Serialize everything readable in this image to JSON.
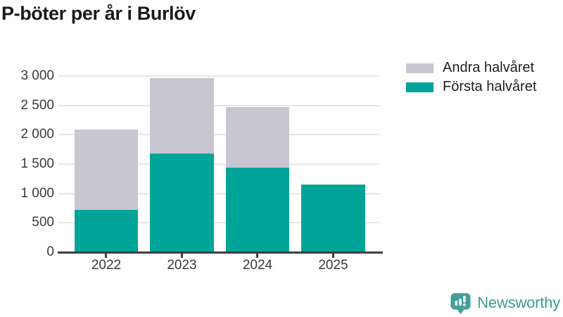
{
  "title": "P-böter per år i Burlöv",
  "legend": {
    "items": [
      {
        "label": "Andra halvåret",
        "color": "#C8C6D0"
      },
      {
        "label": "Första halvåret",
        "color": "#00A498"
      }
    ]
  },
  "chart_data": {
    "type": "bar",
    "stacked": true,
    "title": "P-böter per år i Burlöv",
    "categories": [
      "2022",
      "2023",
      "2024",
      "2025"
    ],
    "series": [
      {
        "name": "Första halvåret",
        "color": "#00A498",
        "values": [
          725,
          1685,
          1440,
          1155
        ]
      },
      {
        "name": "Andra halvåret",
        "color": "#C8C6D0",
        "values": [
          1360,
          1275,
          1030,
          0
        ]
      }
    ],
    "totals": [
      2085,
      2960,
      2470,
      1155
    ],
    "xlabel": "",
    "ylabel": "",
    "ylim": [
      0,
      3000
    ],
    "yticks": [
      0,
      500,
      1000,
      1500,
      2000,
      2500,
      3000
    ],
    "ytick_labels": [
      "0",
      "500",
      "1 000",
      "1 500",
      "2 000",
      "2 500",
      "3 000"
    ],
    "grid": true,
    "legend_position": "top-right"
  },
  "colors": {
    "axis": "#3f3f3f",
    "gridline": "#e6e6e6",
    "axis_text": "#3a3a3a",
    "title_text": "#1a1a1a",
    "brand_teal": "#3f9c94"
  },
  "branding": {
    "wordmark": "Newsworthy"
  }
}
